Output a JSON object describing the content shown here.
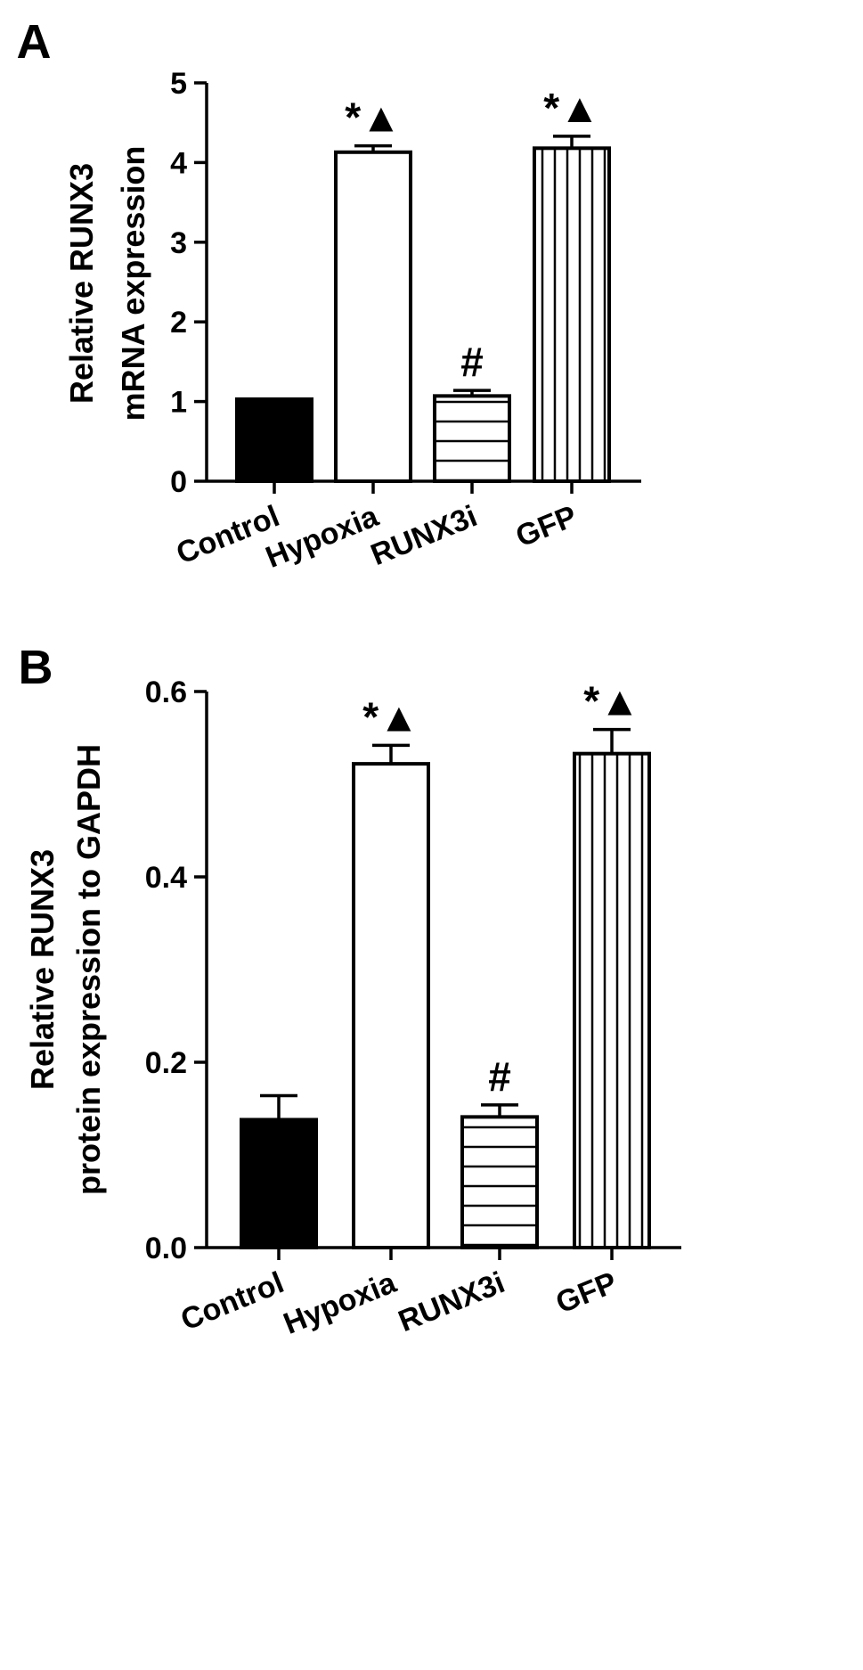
{
  "colors": {
    "ink": "#000000",
    "background": "#ffffff"
  },
  "chart_data": [
    {
      "type": "bar",
      "panel_label": "A",
      "title": "",
      "xlabel": "",
      "ylabel_lines": [
        "Relative RUNX3",
        "mRNA expression"
      ],
      "ylim": [
        0,
        5
      ],
      "yticks": [
        0,
        1,
        2,
        3,
        4,
        5
      ],
      "ytick_labels": [
        "0",
        "1",
        "2",
        "3",
        "4",
        "5"
      ],
      "grid": false,
      "categories": [
        "Control",
        "Hypoxia",
        "RUNX3i",
        "GFP"
      ],
      "values": [
        1.03,
        4.13,
        1.07,
        4.18
      ],
      "errors": [
        0.0,
        0.08,
        0.07,
        0.15
      ],
      "fills": [
        "solid",
        "open",
        "horizontal-hatch",
        "vertical-hatch"
      ],
      "annotations": [
        "",
        "*▲",
        "#",
        "*▲"
      ]
    },
    {
      "type": "bar",
      "panel_label": "B",
      "title": "",
      "xlabel": "",
      "ylabel_lines": [
        "Relative RUNX3",
        "protein expression to GAPDH"
      ],
      "ylim": [
        0,
        0.6
      ],
      "yticks": [
        0,
        0.2,
        0.4,
        0.6
      ],
      "ytick_labels": [
        "0.0",
        "0.2",
        "0.4",
        "0.6"
      ],
      "grid": false,
      "categories": [
        "Control",
        "Hypoxia",
        "RUNX3i",
        "GFP"
      ],
      "values": [
        0.138,
        0.522,
        0.141,
        0.533
      ],
      "errors": [
        0.026,
        0.02,
        0.013,
        0.026
      ],
      "fills": [
        "solid",
        "open",
        "horizontal-hatch",
        "vertical-hatch"
      ],
      "annotations": [
        "",
        "*▲",
        "#",
        "*▲"
      ]
    }
  ]
}
